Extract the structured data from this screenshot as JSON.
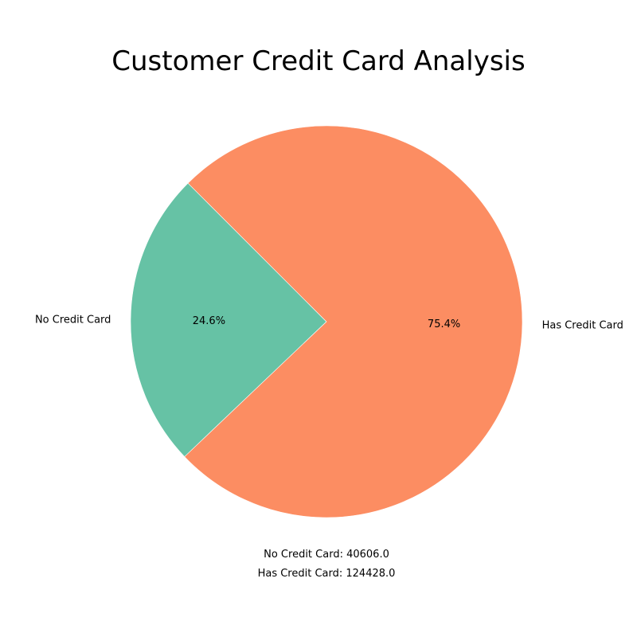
{
  "chart_data": {
    "type": "pie",
    "title": "Customer Credit Card Analysis",
    "slices": [
      {
        "label": "No Credit Card",
        "value": 40606.0,
        "percent_label": "24.6%",
        "color": "#66c2a5"
      },
      {
        "label": "Has Credit Card",
        "value": 124428.0,
        "percent_label": "75.4%",
        "color": "#fc8d62"
      }
    ],
    "start_angle_deg": 135,
    "direction": "counterclockwise",
    "summary_lines": [
      "No Credit Card: 40606.0",
      "Has Credit Card: 124428.0"
    ]
  }
}
